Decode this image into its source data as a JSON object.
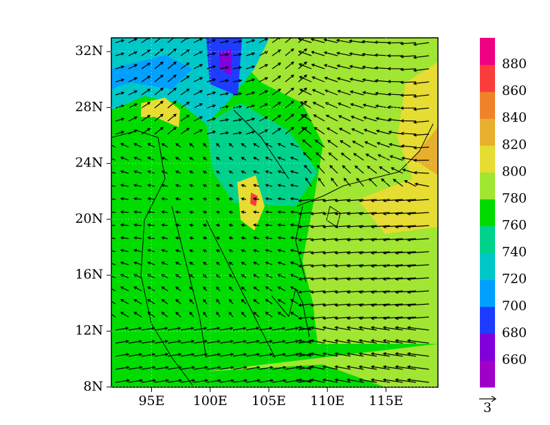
{
  "map": {
    "y_axis_labels": [
      "32N",
      "28N",
      "24N",
      "20N",
      "16N",
      "12N",
      "8N"
    ],
    "x_axis_labels": [
      "95E",
      "100E",
      "105E",
      "110E",
      "115E"
    ],
    "colorbar": {
      "labels": [
        660,
        680,
        700,
        720,
        740,
        760,
        780,
        800,
        820,
        840,
        860,
        880
      ],
      "colors": [
        "#a000c8",
        "#8200dc",
        "#1e3cff",
        "#00a0ff",
        "#00c8c8",
        "#00d28c",
        "#00dc00",
        "#a0e632",
        "#e6dc32",
        "#e6af2d",
        "#f08228",
        "#fa3c3c",
        "#f00082"
      ]
    },
    "reference_vector": "3"
  }
}
